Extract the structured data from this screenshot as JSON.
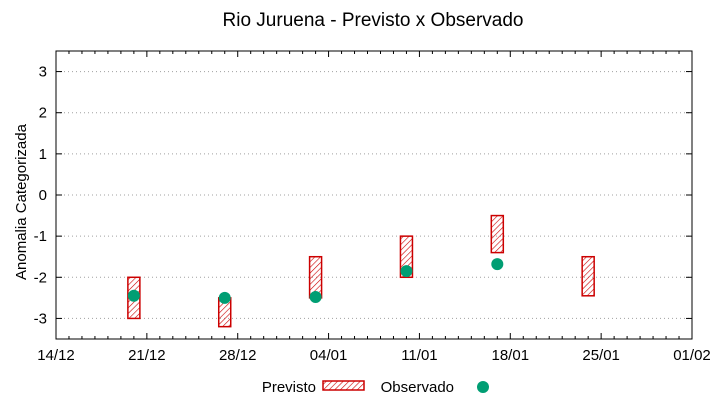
{
  "chart_data": {
    "type": "range-bar-scatter",
    "title": "Rio Juruena - Previsto x Observado",
    "ylabel": "Anomalia Categorizada",
    "xlabel": "",
    "ylim": [
      -3.5,
      3.5
    ],
    "yticks": [
      -3,
      -2,
      -1,
      0,
      1,
      2,
      3
    ],
    "xlim": [
      "2023-12-14",
      "2024-02-01"
    ],
    "xticks": [
      {
        "date": "2023-12-14",
        "label": "14/12"
      },
      {
        "date": "2023-12-21",
        "label": "21/12"
      },
      {
        "date": "2023-12-28",
        "label": "28/12"
      },
      {
        "date": "2024-01-04",
        "label": "04/01"
      },
      {
        "date": "2024-01-11",
        "label": "11/01"
      },
      {
        "date": "2024-01-18",
        "label": "18/01"
      },
      {
        "date": "2024-01-25",
        "label": "25/01"
      },
      {
        "date": "2024-02-01",
        "label": "01/02"
      }
    ],
    "grid": "horizontal-dotted",
    "legend_placement": "bottom-center",
    "series": [
      {
        "name": "Previsto",
        "kind": "range",
        "color": "#cc0000",
        "points": [
          {
            "x": "2023-12-20",
            "low": -3.0,
            "high": -2.0
          },
          {
            "x": "2023-12-27",
            "low": -3.2,
            "high": -2.5
          },
          {
            "x": "2024-01-03",
            "low": -2.5,
            "high": -1.5
          },
          {
            "x": "2024-01-10",
            "low": -2.0,
            "high": -1.0
          },
          {
            "x": "2024-01-17",
            "low": -1.4,
            "high": -0.5
          },
          {
            "x": "2024-01-24",
            "low": -2.45,
            "high": -1.5
          }
        ]
      },
      {
        "name": "Observado",
        "kind": "points",
        "color": "#009e73",
        "points": [
          {
            "x": "2023-12-20",
            "y": -2.45
          },
          {
            "x": "2023-12-27",
            "y": -2.5
          },
          {
            "x": "2024-01-03",
            "y": -2.48
          },
          {
            "x": "2024-01-10",
            "y": -1.85
          },
          {
            "x": "2024-01-17",
            "y": -1.68
          }
        ]
      }
    ]
  }
}
